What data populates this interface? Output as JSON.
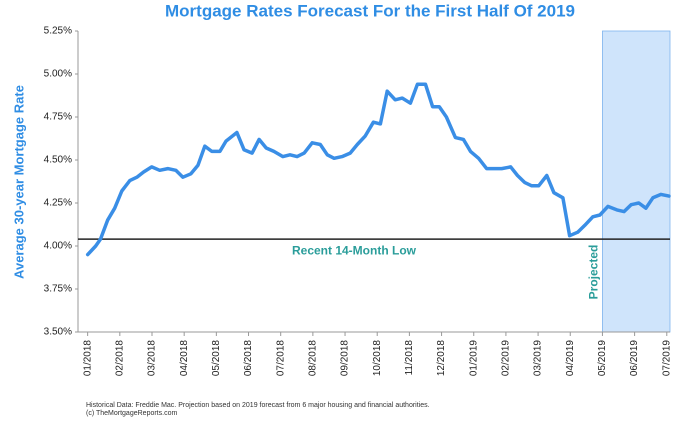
{
  "chart_data": {
    "type": "line",
    "title": "Mortgage Rates Forecast For the First Half Of 2019",
    "y_label": "Average 30-year Mortgage Rate",
    "footnote": [
      "Historical Data: Freddie Mac.  Projection based on 2019 forecast from 6 major housing and financial authorities.",
      "(c) TheMortgageReports.com"
    ],
    "reference_line": {
      "value": 4.04,
      "label": "Recent 14-Month Low"
    },
    "projection": {
      "start": 16,
      "label": "Projected",
      "color": "#cfe4fb"
    },
    "series": [
      {
        "name": "30-year rate",
        "color": "#3a8ee6",
        "x": [
          0,
          0.25,
          0.4,
          0.62,
          0.84,
          1.06,
          1.31,
          1.53,
          1.74,
          1.99,
          2.24,
          2.49,
          2.74,
          2.96,
          3.21,
          3.43,
          3.64,
          3.86,
          4.11,
          4.3,
          4.64,
          4.86,
          5.11,
          5.33,
          5.55,
          5.79,
          6.07,
          6.29,
          6.51,
          6.73,
          6.98,
          7.23,
          7.45,
          7.66,
          7.91,
          8.16,
          8.38,
          8.63,
          8.88,
          9.1,
          9.31,
          9.56,
          9.78,
          10.03,
          10.25,
          10.5,
          10.72,
          10.93,
          11.15,
          11.43,
          11.68,
          11.9,
          12.15,
          12.4,
          12.65,
          12.87,
          13.15,
          13.36,
          13.58,
          13.8,
          14.02,
          14.27,
          14.49,
          14.77,
          14.98,
          15.23,
          15.45,
          15.7,
          15.92,
          16.17,
          16.45,
          16.67,
          16.89,
          17.13,
          17.35,
          17.57,
          17.82,
          18.07
        ],
        "values": [
          3.95,
          4.0,
          4.04,
          4.15,
          4.22,
          4.32,
          4.38,
          4.4,
          4.43,
          4.46,
          4.44,
          4.45,
          4.44,
          4.4,
          4.42,
          4.47,
          4.58,
          4.55,
          4.55,
          4.61,
          4.66,
          4.56,
          4.54,
          4.62,
          4.57,
          4.55,
          4.52,
          4.53,
          4.52,
          4.54,
          4.6,
          4.59,
          4.53,
          4.51,
          4.52,
          4.54,
          4.59,
          4.64,
          4.72,
          4.71,
          4.9,
          4.85,
          4.86,
          4.83,
          4.94,
          4.94,
          4.81,
          4.81,
          4.75,
          4.63,
          4.62,
          4.55,
          4.51,
          4.45,
          4.45,
          4.45,
          4.46,
          4.41,
          4.37,
          4.35,
          4.35,
          4.41,
          4.31,
          4.28,
          4.06,
          4.08,
          4.12,
          4.17,
          4.18,
          4.23,
          4.21,
          4.2,
          4.24,
          4.25,
          4.22,
          4.28,
          4.3,
          4.29
        ]
      }
    ],
    "xlim": [
      -0.3,
      18.1
    ],
    "xticks": [
      {
        "value": 0,
        "label": "01/2018"
      },
      {
        "value": 1,
        "label": "02/2018"
      },
      {
        "value": 2,
        "label": "03/2018"
      },
      {
        "value": 3,
        "label": "04/2018"
      },
      {
        "value": 4,
        "label": "05/2018"
      },
      {
        "value": 5,
        "label": "06/2018"
      },
      {
        "value": 6,
        "label": "07/2018"
      },
      {
        "value": 7,
        "label": "08/2018"
      },
      {
        "value": 8,
        "label": "09/2018"
      },
      {
        "value": 9,
        "label": "10/2018"
      },
      {
        "value": 10,
        "label": "11/2018"
      },
      {
        "value": 11,
        "label": "12/2018"
      },
      {
        "value": 12,
        "label": "01/2019"
      },
      {
        "value": 13,
        "label": "02/2019"
      },
      {
        "value": 14,
        "label": "03/2019"
      },
      {
        "value": 15,
        "label": "04/2019"
      },
      {
        "value": 16,
        "label": "05/2019"
      },
      {
        "value": 17,
        "label": "06/2019"
      },
      {
        "value": 18,
        "label": "07/2019"
      }
    ],
    "ylim": [
      3.5,
      5.25
    ],
    "yticks": [
      {
        "value": 3.5,
        "label": "3.50%"
      },
      {
        "value": 3.75,
        "label": "3.75%"
      },
      {
        "value": 4,
        "label": "4.00%"
      },
      {
        "value": 4.25,
        "label": "4.25%"
      },
      {
        "value": 4.5,
        "label": "4.50%"
      },
      {
        "value": 4.75,
        "label": "4.75%"
      },
      {
        "value": 5,
        "label": "5.00%"
      },
      {
        "value": 5.25,
        "label": "5.25%"
      }
    ]
  }
}
